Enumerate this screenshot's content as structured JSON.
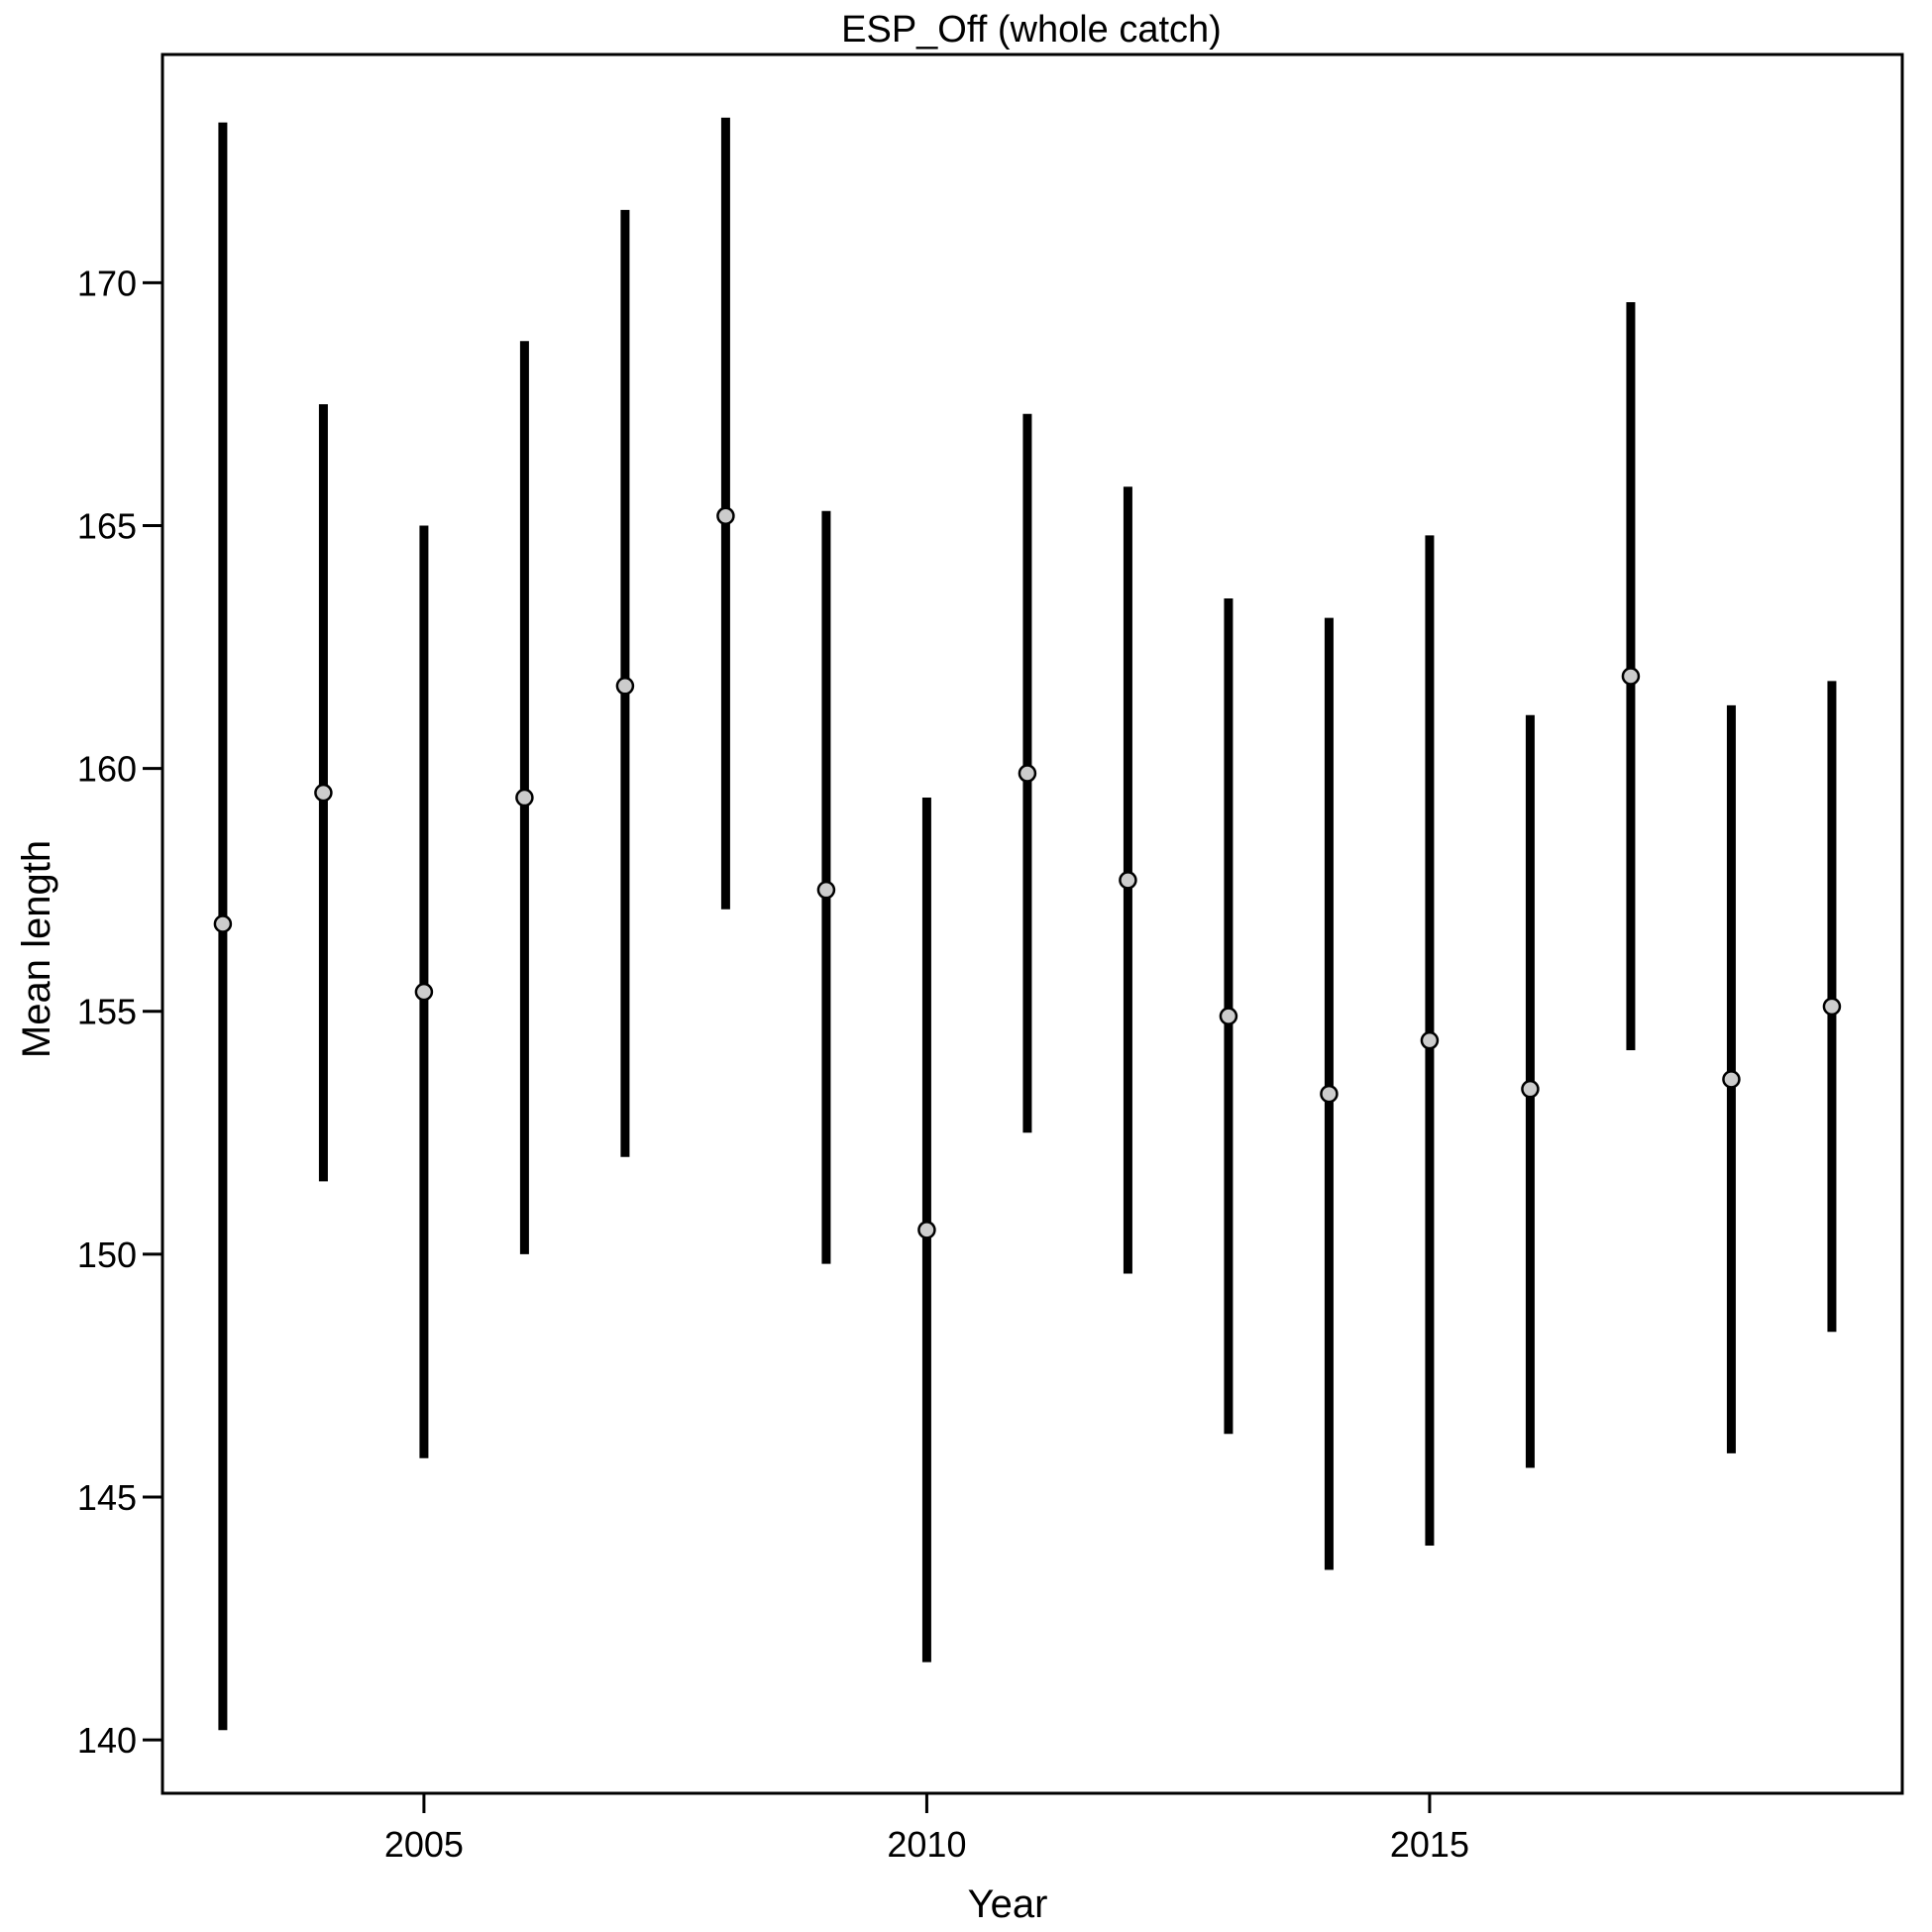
{
  "chart_data": {
    "type": "errorbar",
    "title": "ESP_Off (whole catch)",
    "xlabel": "Year",
    "ylabel": "Mean length",
    "xlim": [
      2002.4,
      2019.7
    ],
    "ylim": [
      138.9,
      174.7
    ],
    "x_ticks": [
      2005,
      2010,
      2015
    ],
    "y_ticks": [
      140,
      145,
      150,
      155,
      160,
      165,
      170
    ],
    "grid": false,
    "colors": {
      "bar": "#000000",
      "point_fill": "#cccccc",
      "point_stroke": "#000000",
      "frame": "#000000"
    },
    "points": [
      {
        "x": 2003,
        "y": 156.8,
        "lower": 140.2,
        "upper": 173.3
      },
      {
        "x": 2004,
        "y": 159.5,
        "lower": 151.5,
        "upper": 167.5
      },
      {
        "x": 2005,
        "y": 155.4,
        "lower": 145.8,
        "upper": 165.0
      },
      {
        "x": 2006,
        "y": 159.4,
        "lower": 150.0,
        "upper": 168.8
      },
      {
        "x": 2007,
        "y": 161.7,
        "lower": 152.0,
        "upper": 171.5
      },
      {
        "x": 2008,
        "y": 165.2,
        "lower": 157.1,
        "upper": 173.4
      },
      {
        "x": 2009,
        "y": 157.5,
        "lower": 149.8,
        "upper": 165.3
      },
      {
        "x": 2010,
        "y": 150.5,
        "lower": 141.6,
        "upper": 159.4
      },
      {
        "x": 2011,
        "y": 159.9,
        "lower": 152.5,
        "upper": 167.3
      },
      {
        "x": 2012,
        "y": 157.7,
        "lower": 149.6,
        "upper": 165.8
      },
      {
        "x": 2013,
        "y": 154.9,
        "lower": 146.3,
        "upper": 163.5
      },
      {
        "x": 2014,
        "y": 153.3,
        "lower": 143.5,
        "upper": 163.1
      },
      {
        "x": 2015,
        "y": 154.4,
        "lower": 144.0,
        "upper": 164.8
      },
      {
        "x": 2016,
        "y": 153.4,
        "lower": 145.6,
        "upper": 161.1
      },
      {
        "x": 2017,
        "y": 161.9,
        "lower": 154.2,
        "upper": 169.6
      },
      {
        "x": 2018,
        "y": 153.6,
        "lower": 145.9,
        "upper": 161.3
      },
      {
        "x": 2019,
        "y": 155.1,
        "lower": 148.4,
        "upper": 161.8
      }
    ]
  }
}
